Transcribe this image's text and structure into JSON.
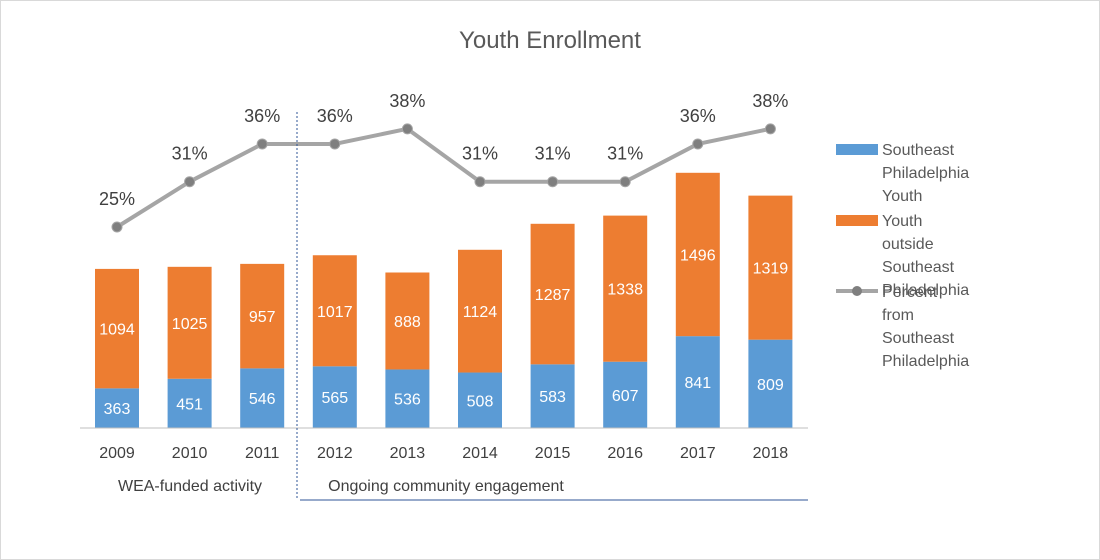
{
  "chart_data": {
    "type": "bar",
    "stacked": true,
    "title": "Youth Enrollment",
    "categories": [
      "2009",
      "2010",
      "2011",
      "2012",
      "2013",
      "2014",
      "2015",
      "2016",
      "2017",
      "2018"
    ],
    "series": [
      {
        "name": "Southeast Philadelphia Youth",
        "color": "#5b9bd5",
        "values": [
          363,
          451,
          546,
          565,
          536,
          508,
          583,
          607,
          841,
          809
        ]
      },
      {
        "name": "Youth outside Southeast Philadelphia",
        "color": "#ed7d31",
        "values": [
          1094,
          1025,
          957,
          1017,
          888,
          1124,
          1287,
          1338,
          1496,
          1319
        ]
      }
    ],
    "line_series": {
      "name": "Percent from Southeast Philadelphia",
      "color": "#a5a5a5",
      "values": [
        25,
        31,
        36,
        36,
        38,
        31,
        31,
        31,
        36,
        38
      ],
      "labels": [
        "25%",
        "31%",
        "36%",
        "36%",
        "38%",
        "31%",
        "31%",
        "31%",
        "36%",
        "38%"
      ]
    },
    "periods": [
      "WEA-funded activity",
      "Ongoing community engagement"
    ],
    "legend_position": "right",
    "grid": false
  }
}
